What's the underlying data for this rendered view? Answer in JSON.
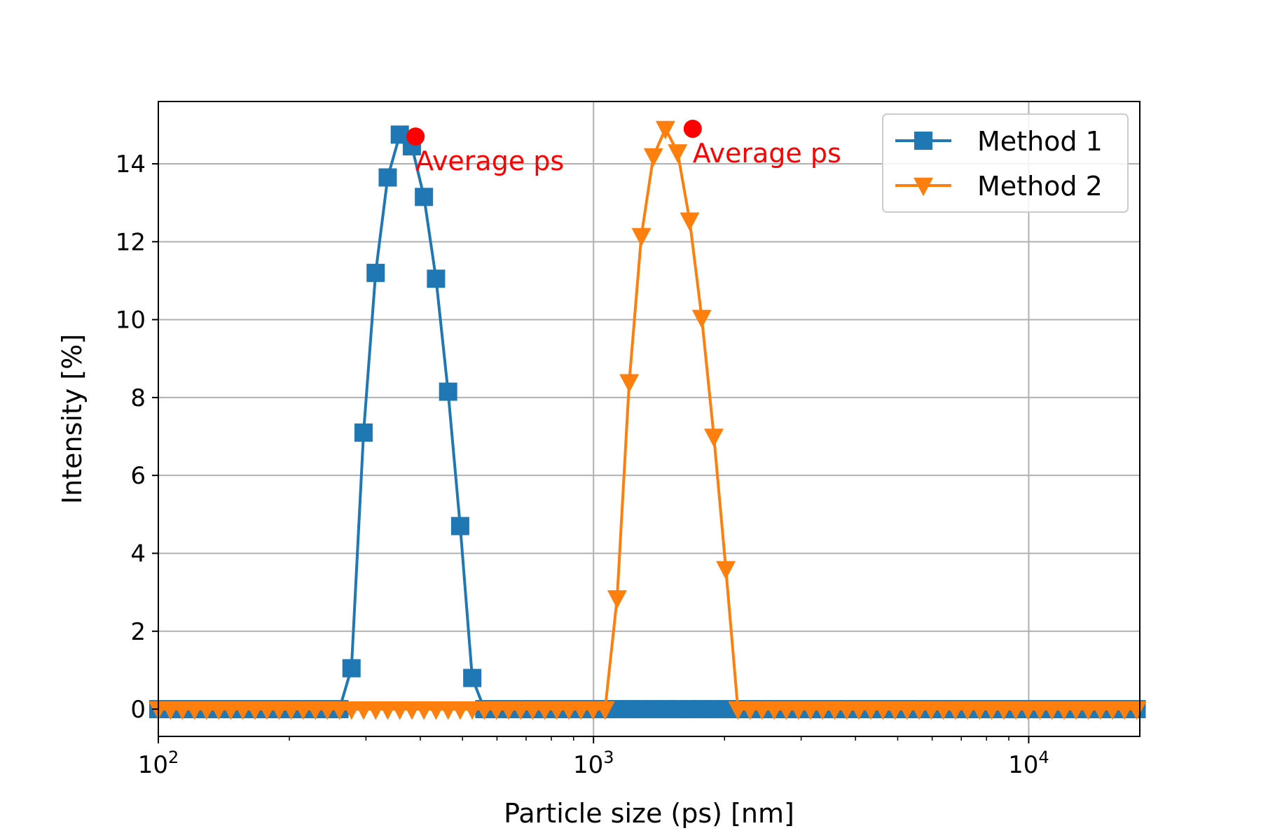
{
  "chart_data": {
    "type": "line",
    "title": "",
    "xlabel": "Particle size (ps) [nm]",
    "ylabel": "Intensity [%]",
    "xscale": "log",
    "xlim": [
      100,
      18000
    ],
    "ylim": [
      -0.7,
      15.6
    ],
    "yticks": [
      0,
      2,
      4,
      6,
      8,
      10,
      12,
      14
    ],
    "xticks": [
      {
        "value": 100,
        "base": "10",
        "exp": "2"
      },
      {
        "value": 1000,
        "base": "10",
        "exp": "3"
      },
      {
        "value": 10000,
        "base": "10",
        "exp": "4"
      }
    ],
    "grid": true,
    "legend_position": "top-right",
    "series": [
      {
        "name": "Method 1",
        "color": "#1f77b4",
        "marker": "square",
        "points": [
          [
            100,
            0
          ],
          [
            106.6,
            0
          ],
          [
            113.6,
            0
          ],
          [
            121.1,
            0
          ],
          [
            129.1,
            0
          ],
          [
            137.6,
            0
          ],
          [
            146.7,
            0
          ],
          [
            156.4,
            0
          ],
          [
            166.7,
            0
          ],
          [
            177.7,
            0
          ],
          [
            189.4,
            0
          ],
          [
            201.9,
            0
          ],
          [
            215.2,
            0
          ],
          [
            229.4,
            0
          ],
          [
            244.5,
            0
          ],
          [
            260.7,
            0
          ],
          [
            277.9,
            1.05
          ],
          [
            296.2,
            7.1
          ],
          [
            315.8,
            11.2
          ],
          [
            336.6,
            13.65
          ],
          [
            358.8,
            14.75
          ],
          [
            382.5,
            14.45
          ],
          [
            407.7,
            13.15
          ],
          [
            434.6,
            11.05
          ],
          [
            463.3,
            8.15
          ],
          [
            493.9,
            4.7
          ],
          [
            526.5,
            0.8
          ],
          [
            561.2,
            0
          ],
          [
            598.2,
            0
          ],
          [
            637.7,
            0
          ],
          [
            679.8,
            0
          ],
          [
            724.7,
            0
          ],
          [
            772.5,
            0
          ],
          [
            823.5,
            0
          ],
          [
            877.8,
            0
          ],
          [
            935.7,
            0
          ],
          [
            997.5,
            0
          ],
          [
            1063,
            0
          ],
          [
            1133,
            0
          ],
          [
            1208,
            0
          ],
          [
            1288,
            0
          ],
          [
            1373,
            0
          ],
          [
            1463,
            0
          ],
          [
            1560,
            0
          ],
          [
            1663,
            0
          ],
          [
            1773,
            0
          ],
          [
            1890,
            0
          ],
          [
            2014,
            0
          ],
          [
            2147,
            0
          ],
          [
            2289,
            0
          ],
          [
            2440,
            0
          ],
          [
            2601,
            0
          ],
          [
            2773,
            0
          ],
          [
            2956,
            0
          ],
          [
            3151,
            0
          ],
          [
            3359,
            0
          ],
          [
            3581,
            0
          ],
          [
            3817,
            0
          ],
          [
            4069,
            0
          ],
          [
            4337,
            0
          ],
          [
            4624,
            0
          ],
          [
            4929,
            0
          ],
          [
            5254,
            0
          ],
          [
            5601,
            0
          ],
          [
            5970,
            0
          ],
          [
            6364,
            0
          ],
          [
            6784,
            0
          ],
          [
            7232,
            0
          ],
          [
            7709,
            0
          ],
          [
            8218,
            0
          ],
          [
            8760,
            0
          ],
          [
            9338,
            0
          ],
          [
            9954,
            0
          ],
          [
            10610,
            0
          ],
          [
            11310,
            0
          ],
          [
            12060,
            0
          ],
          [
            12850,
            0
          ],
          [
            13700,
            0
          ],
          [
            14610,
            0
          ],
          [
            15570,
            0
          ],
          [
            16600,
            0
          ],
          [
            17700,
            0
          ]
        ]
      },
      {
        "name": "Method 2",
        "color": "#ff7f0e",
        "marker": "triangle-down",
        "points": [
          [
            100,
            0
          ],
          [
            106.6,
            0
          ],
          [
            113.6,
            0
          ],
          [
            121.1,
            0
          ],
          [
            129.1,
            0
          ],
          [
            137.6,
            0
          ],
          [
            146.7,
            0
          ],
          [
            156.4,
            0
          ],
          [
            166.7,
            0
          ],
          [
            177.7,
            0
          ],
          [
            189.4,
            0
          ],
          [
            201.9,
            0
          ],
          [
            215.2,
            0
          ],
          [
            229.4,
            0
          ],
          [
            244.5,
            0
          ],
          [
            260.7,
            0
          ],
          [
            277.9,
            0
          ],
          [
            296.2,
            0
          ],
          [
            315.8,
            0
          ],
          [
            336.6,
            0
          ],
          [
            358.8,
            0
          ],
          [
            382.5,
            0
          ],
          [
            407.7,
            0
          ],
          [
            434.6,
            0
          ],
          [
            463.3,
            0
          ],
          [
            493.9,
            0
          ],
          [
            526.5,
            0
          ],
          [
            561.2,
            0
          ],
          [
            598.2,
            0
          ],
          [
            637.7,
            0
          ],
          [
            679.8,
            0
          ],
          [
            724.7,
            0
          ],
          [
            772.5,
            0
          ],
          [
            823.5,
            0
          ],
          [
            877.8,
            0
          ],
          [
            935.7,
            0
          ],
          [
            997.5,
            0
          ],
          [
            1063,
            0
          ],
          [
            1133,
            2.85
          ],
          [
            1208,
            8.4
          ],
          [
            1288,
            12.15
          ],
          [
            1373,
            14.2
          ],
          [
            1463,
            14.9
          ],
          [
            1560,
            14.3
          ],
          [
            1663,
            12.55
          ],
          [
            1773,
            10.05
          ],
          [
            1890,
            7.0
          ],
          [
            2014,
            3.6
          ],
          [
            2147,
            0
          ],
          [
            2289,
            0
          ],
          [
            2440,
            0
          ],
          [
            2601,
            0
          ],
          [
            2773,
            0
          ],
          [
            2956,
            0
          ],
          [
            3151,
            0
          ],
          [
            3359,
            0
          ],
          [
            3581,
            0
          ],
          [
            3817,
            0
          ],
          [
            4069,
            0
          ],
          [
            4337,
            0
          ],
          [
            4624,
            0
          ],
          [
            4929,
            0
          ],
          [
            5254,
            0
          ],
          [
            5601,
            0
          ],
          [
            5970,
            0
          ],
          [
            6364,
            0
          ],
          [
            6784,
            0
          ],
          [
            7232,
            0
          ],
          [
            7709,
            0
          ],
          [
            8218,
            0
          ],
          [
            8760,
            0
          ],
          [
            9338,
            0
          ],
          [
            9954,
            0
          ],
          [
            10610,
            0
          ],
          [
            11310,
            0
          ],
          [
            12060,
            0
          ],
          [
            12850,
            0
          ],
          [
            13700,
            0
          ],
          [
            14610,
            0
          ],
          [
            15570,
            0
          ],
          [
            16600,
            0
          ],
          [
            17700,
            0
          ]
        ]
      }
    ],
    "annotations": [
      {
        "text": "Average ps",
        "x": 390,
        "y": 14.7,
        "color": "#ff0000"
      },
      {
        "text": "Average ps",
        "x": 1690,
        "y": 14.9,
        "color": "#ff0000"
      }
    ]
  }
}
